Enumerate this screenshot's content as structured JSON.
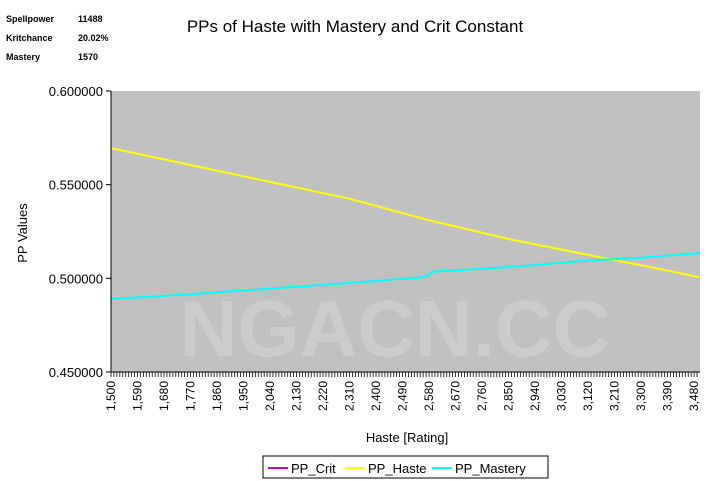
{
  "stats": [
    {
      "label": "Spellpower",
      "value": "11488"
    },
    {
      "label": "Kritchance",
      "value": "20.02%"
    },
    {
      "label": "Mastery",
      "value": "1570"
    }
  ],
  "watermark": "NGACN.CC",
  "chart_data": {
    "type": "line",
    "title": "PPs of Haste with Mastery and Crit Constant",
    "xlabel": "Haste [Rating]",
    "ylabel": "PP Values",
    "ylim": [
      0.45,
      0.6
    ],
    "yticks": [
      "0.450000",
      "0.500000",
      "0.550000",
      "0.600000"
    ],
    "xlim": [
      1500,
      3500
    ],
    "xticks": [
      "1,500",
      "1,590",
      "1,680",
      "1,770",
      "1,860",
      "1,950",
      "2,040",
      "2,130",
      "2,220",
      "2,310",
      "2,400",
      "2,490",
      "2,580",
      "2,670",
      "2,760",
      "2,850",
      "2,940",
      "3,030",
      "3,120",
      "3,210",
      "3,300",
      "3,390",
      "3,480"
    ],
    "grid": false,
    "legend": "bottom",
    "plot_background": "#c0c0c0",
    "series": [
      {
        "name": "PP_Crit",
        "color": "#cc00cc",
        "points": []
      },
      {
        "name": "PP_Haste",
        "color": "#ffff00",
        "points": [
          [
            1500,
            0.5695
          ],
          [
            1770,
            0.5605
          ],
          [
            2040,
            0.5515
          ],
          [
            2310,
            0.5425
          ],
          [
            2580,
            0.531
          ],
          [
            2850,
            0.521
          ],
          [
            3120,
            0.5125
          ],
          [
            3300,
            0.507
          ],
          [
            3500,
            0.5005
          ]
        ]
      },
      {
        "name": "PP_Mastery",
        "color": "#00ffff",
        "points": [
          [
            1500,
            0.489
          ],
          [
            1770,
            0.4915
          ],
          [
            2040,
            0.4945
          ],
          [
            2310,
            0.4975
          ],
          [
            2550,
            0.5005
          ],
          [
            2580,
            0.5015
          ],
          [
            2590,
            0.5035
          ],
          [
            2850,
            0.506
          ],
          [
            3120,
            0.5095
          ],
          [
            3300,
            0.511
          ],
          [
            3500,
            0.5135
          ]
        ]
      }
    ]
  }
}
